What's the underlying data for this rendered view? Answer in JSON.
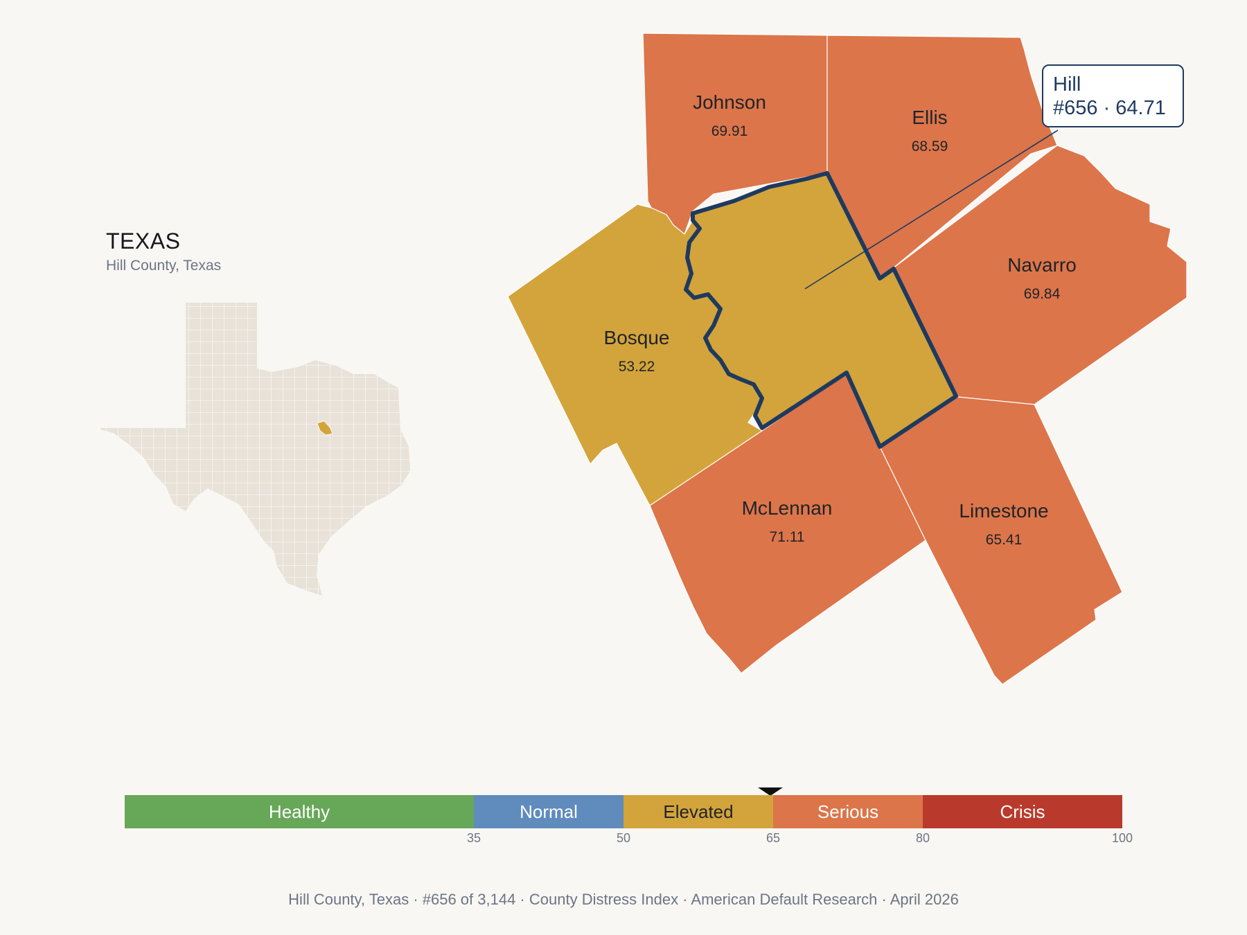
{
  "state": {
    "title": "TEXAS",
    "subtitle": "Hill County, Texas"
  },
  "colors": {
    "healthy": "#67a758",
    "normal": "#5f8bbd",
    "elevated": "#d3a43b",
    "serious": "#dc754a",
    "crisis": "#b93a2c",
    "highlight_outline": "#1e3a5f",
    "inset_fill": "#e8e2d8",
    "inset_highlight": "#d3a43b"
  },
  "counties": [
    {
      "name": "Johnson",
      "score": "69.91",
      "category": "serious"
    },
    {
      "name": "Ellis",
      "score": "68.59",
      "category": "serious"
    },
    {
      "name": "Navarro",
      "score": "69.84",
      "category": "serious"
    },
    {
      "name": "Bosque",
      "score": "53.22",
      "category": "elevated"
    },
    {
      "name": "Hill",
      "score": "64.71",
      "category": "elevated",
      "highlighted": true
    },
    {
      "name": "McLennan",
      "score": "71.11",
      "category": "serious"
    },
    {
      "name": "Limestone",
      "score": "65.41",
      "category": "serious"
    }
  ],
  "callout": {
    "line1": "Hill",
    "line2": "#656 · 64.71"
  },
  "scale": {
    "segments": [
      {
        "label": "Healthy",
        "from": 0,
        "to": 35,
        "color": "#67a758",
        "text_color": "#ffffff"
      },
      {
        "label": "Normal",
        "from": 35,
        "to": 50,
        "color": "#5f8bbd",
        "text_color": "#ffffff"
      },
      {
        "label": "Elevated",
        "from": 50,
        "to": 65,
        "color": "#d3a43b",
        "text_color": "#1f2328"
      },
      {
        "label": "Serious",
        "from": 65,
        "to": 80,
        "color": "#dc754a",
        "text_color": "#ffffff"
      },
      {
        "label": "Crisis",
        "from": 80,
        "to": 100,
        "color": "#b93a2c",
        "text_color": "#ffffff"
      }
    ],
    "ticks": [
      "35",
      "50",
      "65",
      "80",
      "100"
    ],
    "marker_value": 64.71
  },
  "footer": "Hill County, Texas  ·  #656 of 3,144  ·  County Distress Index  ·  American Default Research  ·  April 2026"
}
